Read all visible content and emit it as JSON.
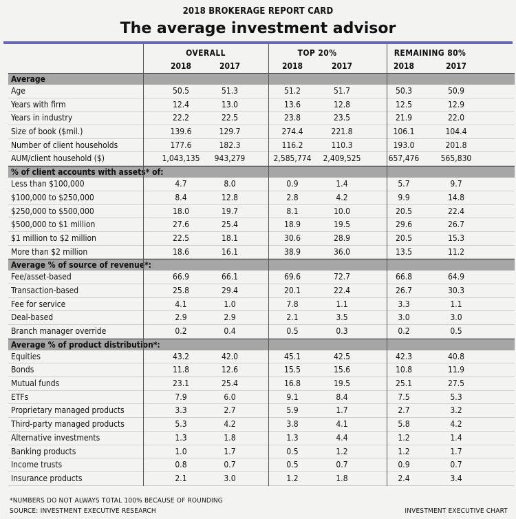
{
  "header": {
    "kicker": "2018 BROKERAGE REPORT CARD",
    "title": "The average investment advisor"
  },
  "chart_data": {
    "type": "table",
    "groups": [
      "OVERALL",
      "TOP 20%",
      "REMAINING 80%"
    ],
    "years": [
      "2018",
      "2017",
      "2018",
      "2017",
      "2018",
      "2017"
    ],
    "sections": [
      {
        "title": "Average",
        "rows": [
          {
            "label": "Age",
            "values": [
              "50.5",
              "51.3",
              "51.2",
              "51.7",
              "50.3",
              "50.9"
            ]
          },
          {
            "label": "Years with firm",
            "values": [
              "12.4",
              "13.0",
              "13.6",
              "12.8",
              "12.5",
              "12.9"
            ]
          },
          {
            "label": "Years in industry",
            "values": [
              "22.2",
              "22.5",
              "23.8",
              "23.5",
              "21.9",
              "22.0"
            ]
          },
          {
            "label": "Size of book ($mil.)",
            "values": [
              "139.6",
              "129.7",
              "274.4",
              "221.8",
              "106.1",
              "104.4"
            ]
          },
          {
            "label": "Number of client households",
            "values": [
              "177.6",
              "182.3",
              "116.2",
              "110.3",
              "193.0",
              "201.8"
            ]
          },
          {
            "label": "AUM/client household ($)",
            "values": [
              "1,043,135",
              "943,279",
              "2,585,774",
              "2,409,525",
              "657,476",
              "565,830"
            ]
          }
        ]
      },
      {
        "title": "% of client accounts with assets* of:",
        "rows": [
          {
            "label": "Less than $100,000",
            "values": [
              "4.7",
              "8.0",
              "0.9",
              "1.4",
              "5.7",
              "9.7"
            ]
          },
          {
            "label": "$100,000 to $250,000",
            "values": [
              "8.4",
              "12.8",
              "2.8",
              "4.2",
              "9.9",
              "14.8"
            ]
          },
          {
            "label": "$250,000 to $500,000",
            "values": [
              "18.0",
              "19.7",
              "8.1",
              "10.0",
              "20.5",
              "22.4"
            ]
          },
          {
            "label": "$500,000 to $1 million",
            "values": [
              "27.6",
              "25.4",
              "18.9",
              "19.5",
              "29.6",
              "26.7"
            ]
          },
          {
            "label": "$1 million to $2 million",
            "values": [
              "22.5",
              "18.1",
              "30.6",
              "28.9",
              "20.5",
              "15.3"
            ]
          },
          {
            "label": "More than $2 million",
            "values": [
              "18.6",
              "16.1",
              "38.9",
              "36.0",
              "13.5",
              "11.2"
            ]
          }
        ]
      },
      {
        "title": "Average % of source of revenue*:",
        "rows": [
          {
            "label": "Fee/asset-based",
            "values": [
              "66.9",
              "66.1",
              "69.6",
              "72.7",
              "66.8",
              "64.9"
            ]
          },
          {
            "label": "Transaction-based",
            "values": [
              "25.8",
              "29.4",
              "20.1",
              "22.4",
              "26.7",
              "30.3"
            ]
          },
          {
            "label": "Fee for service",
            "values": [
              "4.1",
              "1.0",
              "7.8",
              "1.1",
              "3.3",
              "1.1"
            ]
          },
          {
            "label": "Deal-based",
            "values": [
              "2.9",
              "2.9",
              "2.1",
              "3.5",
              "3.0",
              "3.0"
            ]
          },
          {
            "label": "Branch manager override",
            "values": [
              "0.2",
              "0.4",
              "0.5",
              "0.3",
              "0.2",
              "0.5"
            ]
          }
        ]
      },
      {
        "title": "Average % of product distribution*:",
        "rows": [
          {
            "label": "Equities",
            "values": [
              "43.2",
              "42.0",
              "45.1",
              "42.5",
              "42.3",
              "40.8"
            ]
          },
          {
            "label": "Bonds",
            "values": [
              "11.8",
              "12.6",
              "15.5",
              "15.6",
              "10.8",
              "11.9"
            ]
          },
          {
            "label": "Mutual funds",
            "values": [
              "23.1",
              "25.4",
              "16.8",
              "19.5",
              "25.1",
              "27.5"
            ]
          },
          {
            "label": "ETFs",
            "values": [
              "7.9",
              "6.0",
              "9.1",
              "8.4",
              "7.5",
              "5.3"
            ]
          },
          {
            "label": "Proprietary managed products",
            "values": [
              "3.3",
              "2.7",
              "5.9",
              "1.7",
              "2.7",
              "3.2"
            ]
          },
          {
            "label": "Third-party managed products",
            "values": [
              "5.3",
              "4.2",
              "3.8",
              "4.1",
              "5.8",
              "4.2"
            ]
          },
          {
            "label": "Alternative investments",
            "values": [
              "1.3",
              "1.8",
              "1.3",
              "4.4",
              "1.2",
              "1.4"
            ]
          },
          {
            "label": "Banking products",
            "values": [
              "1.0",
              "1.7",
              "0.5",
              "1.2",
              "1.2",
              "1.7"
            ]
          },
          {
            "label": "Income trusts",
            "values": [
              "0.8",
              "0.7",
              "0.5",
              "0.7",
              "0.9",
              "0.7"
            ]
          },
          {
            "label": "Insurance products",
            "values": [
              "2.1",
              "3.0",
              "1.2",
              "1.8",
              "2.4",
              "3.4"
            ]
          }
        ]
      }
    ]
  },
  "footer": {
    "note": "*NUMBERS DO NOT ALWAYS TOTAL 100% BECAUSE OF ROUNDING",
    "source": "SOURCE: INVESTMENT EXECUTIVE RESEARCH",
    "credit": "INVESTMENT EXECUTIVE CHART"
  },
  "colors": {
    "accent_rule": "#6b66b1",
    "section_band": "#a6a6a6",
    "background": "#f3f3f1"
  }
}
